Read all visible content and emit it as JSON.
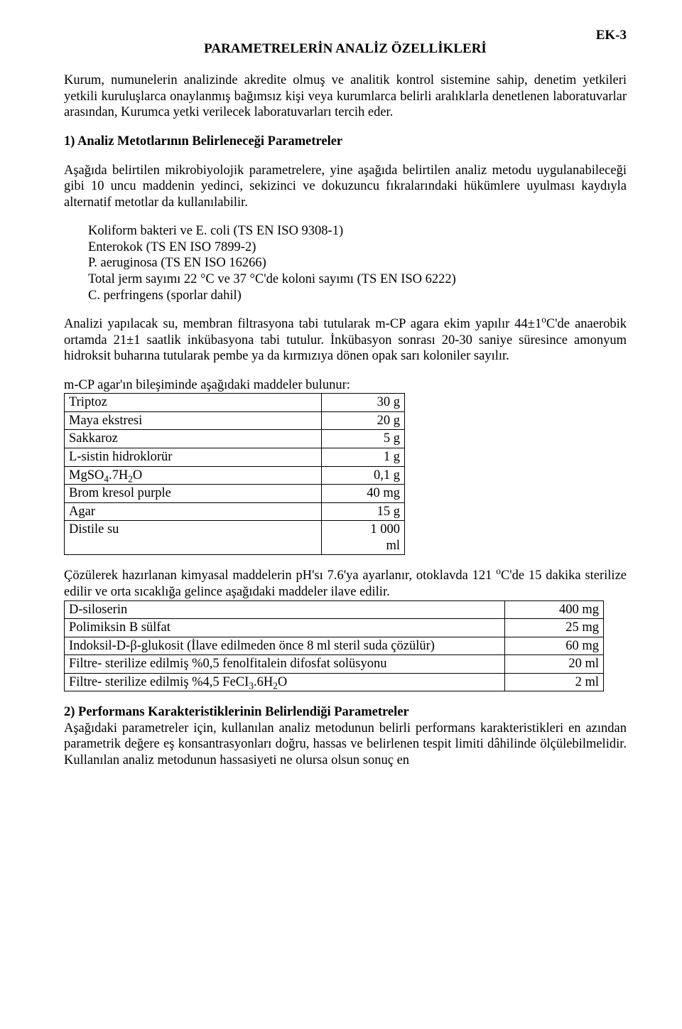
{
  "ek_label": "EK-3",
  "title": "PARAMETRELERİN ANALİZ ÖZELLİKLERİ",
  "intro": "Kurum, numunelerin analizinde akredite olmuş ve analitik kontrol sistemine sahip, denetim yetkileri yetkili kuruluşlarca onaylanmış bağımsız kişi veya kurumlarca belirli aralıklarla denetlenen laboratuvarlar arasından, Kurumca yetki verilecek laboratuvarları tercih eder.",
  "section1_heading": "1) Analiz Metotlarının Belirleneceği Parametreler",
  "section1_p1": "Aşağıda belirtilen mikrobiyolojik parametrelere, yine aşağıda belirtilen analiz metodu uygulanabileceği gibi 10 uncu maddenin yedinci, sekizinci ve dokuzuncu fıkralarındaki hükümlere uyulması kaydıyla alternatif metotlar da kullanılabilir.",
  "methods": {
    "m1": "Koliform bakteri ve E. coli (TS EN ISO 9308-1)",
    "m2": "Enterokok (TS EN ISO 7899-2)",
    "m3": "P. aeruginosa (TS EN ISO 16266)",
    "m4": "Total jerm sayımı 22 °C ve 37 °C'de koloni sayımı (TS EN ISO 6222)",
    "m5": "C. perfringens (sporlar dahil)"
  },
  "section1_p2_html": "Analizi yapılacak su, membran filtrasyona tabi tutularak m-CP agara ekim yapılır 44±1<sup>o</sup>C'de anaerobik ortamda 21±1 saatlik inkübasyona tabi tutulur. İnkübasyon sonrası 20-30 saniye süresince amonyum hidroksit buharına tutularak pembe ya da kırmızıya dönen opak sarı koloniler sayılır.",
  "table1_intro": "m-CP agar'ın bileşiminde aşağıdaki maddeler bulunur:",
  "table1": {
    "rows": [
      {
        "label": "Triptoz",
        "value": "30 g"
      },
      {
        "label": "Maya ekstresi",
        "value": "20 g"
      },
      {
        "label": "Sakkaroz",
        "value": "5 g"
      },
      {
        "label": "L-sistin hidroklorür",
        "value": "1 g"
      },
      {
        "label_html": "MgSO<sub>4</sub>.7H<sub>2</sub>O",
        "value": "0,1 g"
      },
      {
        "label": "Brom kresol purple",
        "value": "40 mg"
      },
      {
        "label": "Agar",
        "value": "15 g"
      },
      {
        "label": "Distile su",
        "value_html": "1&nbsp;000<br>ml"
      }
    ]
  },
  "table2_intro_html": "Çözülerek hazırlanan kimyasal maddelerin pH'sı  7.6'ya ayarlanır, otoklavda 121 <sup>o</sup>C'de 15 dakika sterilize edilir ve orta sıcaklığa gelince aşağıdaki maddeler ilave edilir.",
  "table2": {
    "rows": [
      {
        "label": "D-siloserin",
        "value": "400 mg"
      },
      {
        "label": "Polimiksin B sülfat",
        "value": "25 mg"
      },
      {
        "label": "Indoksil-D-β-glukosit (İlave edilmeden önce 8 ml steril suda çözülür)",
        "value": "60 mg"
      },
      {
        "label": "Filtre- sterilize edilmiş %0,5 fenolfitalein difosfat solüsyonu",
        "value": "20 ml"
      },
      {
        "label_html": "Filtre- sterilize edilmiş %4,5 FeCI<sub>3</sub>.6H<sub>2</sub>O",
        "value": "2 ml"
      }
    ]
  },
  "section2_heading": "2) Performans Karakteristiklerinin Belirlendiği Parametreler",
  "section2_p1": "Aşağıdaki parametreler için, kullanılan analiz metodunun belirli performans karakteristikleri en azından parametrik değere eş konsantrasyonları doğru, hassas ve belirlenen tespit limiti dâhilinde ölçülebilmelidir. Kullanılan analiz metodunun hassasiyeti ne olursa olsun sonuç en"
}
